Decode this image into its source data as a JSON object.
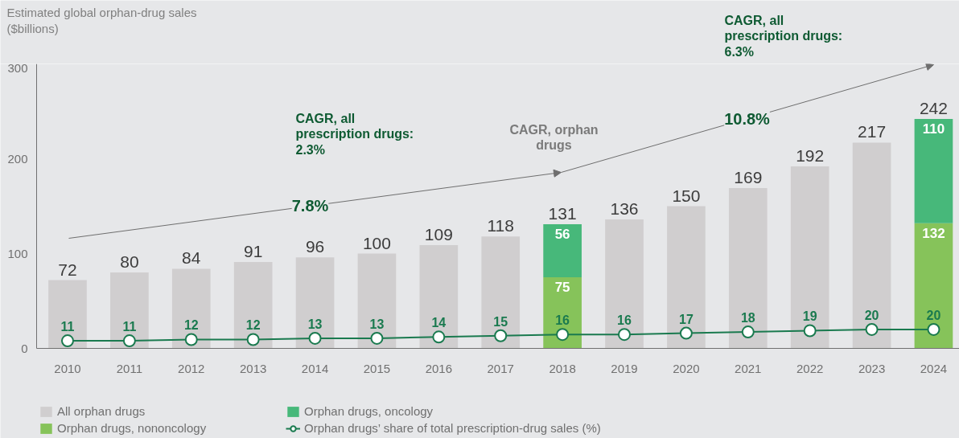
{
  "chart_data": {
    "type": "bar",
    "ylabel": "Estimated global orphan-drug sales ($billions)",
    "categories": [
      "2010",
      "2011",
      "2012",
      "2013",
      "2014",
      "2015",
      "2016",
      "2017",
      "2018",
      "2019",
      "2020",
      "2021",
      "2022",
      "2023",
      "2024"
    ],
    "stacked": true,
    "ylim": [
      0,
      300
    ],
    "yticks": [
      0,
      100,
      200,
      300
    ],
    "y2lim": [
      5,
      230
    ],
    "legend": "bottom",
    "series": [
      {
        "name": "All orphan drugs",
        "color": "#d0cecf",
        "values": [
          72,
          80,
          84,
          91,
          96,
          100,
          109,
          118,
          null,
          136,
          150,
          169,
          192,
          217,
          null
        ]
      },
      {
        "name": "Orphan drugs, nononcology",
        "color": "#86c35a",
        "values": [
          null,
          null,
          null,
          null,
          null,
          null,
          null,
          null,
          75,
          null,
          null,
          null,
          null,
          null,
          132
        ],
        "value_labels": [
          null,
          null,
          null,
          null,
          null,
          null,
          null,
          null,
          "75",
          null,
          null,
          null,
          null,
          null,
          "132"
        ]
      },
      {
        "name": "Orphan drugs, oncology",
        "color": "#47b87a",
        "values": [
          null,
          null,
          null,
          null,
          null,
          null,
          null,
          null,
          56,
          null,
          null,
          null,
          null,
          null,
          110
        ],
        "value_labels": [
          null,
          null,
          null,
          null,
          null,
          null,
          null,
          null,
          "56",
          null,
          null,
          null,
          null,
          null,
          "110"
        ]
      },
      {
        "name": "Orphan drugs’ share of total prescription-drug sales (%)",
        "type": "line",
        "axis": "y2",
        "marker": "circle",
        "color": "#1a7a4f",
        "values": [
          11,
          11,
          12,
          12,
          13,
          13,
          14,
          15,
          16,
          16,
          17,
          18,
          19,
          20,
          20
        ],
        "value_labels": [
          "11",
          "11",
          "12",
          "12",
          "13",
          "13",
          "14",
          "15",
          "16",
          "16",
          "17",
          "18",
          "19",
          "20",
          "20"
        ]
      }
    ],
    "totals": [
      "72",
      "80",
      "84",
      "91",
      "96",
      "100",
      "109",
      "118",
      "131",
      "136",
      "150",
      "169",
      "192",
      "217",
      "242"
    ],
    "annotations": [
      "CAGR, all prescription drugs: 2.3%",
      "7.8%",
      "CAGR, orphan drugs",
      "CAGR, all prescription drugs: 6.3%",
      "10.8%"
    ]
  }
}
